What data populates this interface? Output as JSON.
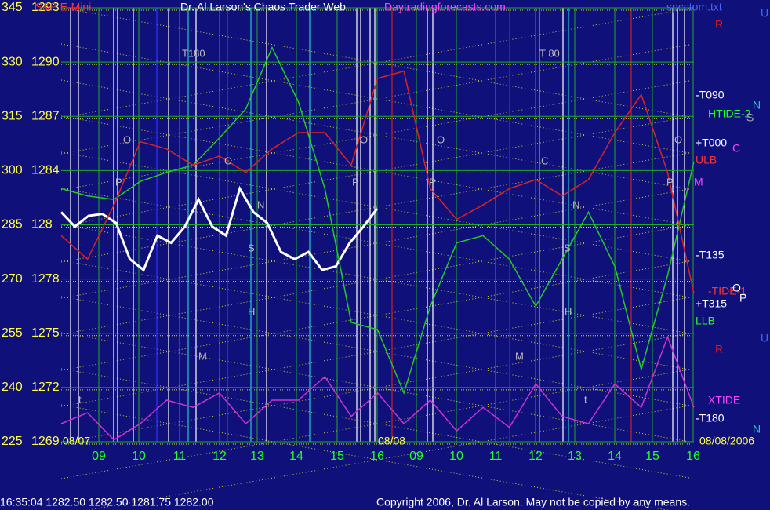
{
  "chart_data": {
    "type": "line",
    "title": "Dr. Al Larson's Chaos Trader Web",
    "symbol": "S&P E-Mini",
    "site": "Daytradingforecasts.com",
    "file": "spcctom.txt",
    "ylim": [
      1269,
      1293
    ],
    "yticks": [
      1293,
      1290,
      1287,
      1284,
      {
        "value": 1281,
        "label": "128"
      },
      1278,
      1275,
      1272,
      {
        "value": 1269,
        "label": "1269"
      }
    ],
    "y2lim": [
      225,
      345
    ],
    "y2ticks": [
      345,
      330,
      315,
      300,
      285,
      270,
      255,
      240,
      225
    ],
    "hour_labels": [
      "09",
      "10",
      "11",
      "12",
      "13",
      "14",
      "15",
      "16",
      "09",
      "10",
      "11",
      "12",
      "13",
      "14",
      "15",
      "16"
    ],
    "date_labels": [
      "08/07",
      "08/08",
      "08/08/2006"
    ],
    "grid": true,
    "series": [
      {
        "color": "#ffffff",
        "values": [
          1281.7,
          1280.9,
          1281.5,
          1281.6,
          1281.1,
          1279.1,
          1278.5,
          1280.4,
          1280.0,
          1280.9,
          1282.4,
          1280.9,
          1280.4,
          1283.0,
          1281.7,
          1281.1,
          1279.5,
          1279.1,
          1279.5,
          1278.5,
          1278.7,
          1280.0,
          1280.9,
          1281.9
        ]
      },
      {
        "color": "#22cc22",
        "values": [
          1283.0,
          1282.6,
          1282.4,
          1283.4,
          1283.9,
          1284.3,
          1285.8,
          1287.4,
          1290.8,
          1287.8,
          1283.0,
          1275.6,
          1275.2,
          1271.7,
          1276.5,
          1280.0,
          1280.4,
          1279.1,
          1276.5,
          1279.1,
          1281.7,
          1278.7,
          1273.0,
          1278.2,
          1284.5
        ]
      },
      {
        "color": "#dd2222",
        "values": [
          1280.4,
          1279.1,
          1282.1,
          1285.6,
          1285.2,
          1284.3,
          1284.8,
          1283.9,
          1285.2,
          1286.1,
          1286.1,
          1284.3,
          1289.1,
          1289.5,
          1283.0,
          1281.3,
          1282.1,
          1283.0,
          1283.5,
          1282.6,
          1283.5,
          1286.1,
          1288.2,
          1283.9,
          1277.2
        ]
      },
      {
        "color": "#cc33cc",
        "values": [
          1270.0,
          1270.6,
          1269.1,
          1270.0,
          1271.3,
          1270.9,
          1271.7,
          1270.0,
          1271.3,
          1271.3,
          1272.6,
          1270.4,
          1271.7,
          1270.0,
          1271.3,
          1269.6,
          1270.9,
          1269.8,
          1272.2,
          1270.4,
          1270.0,
          1272.2,
          1270.9,
          1274.8,
          1270.9
        ]
      }
    ],
    "right_labels": [
      "R",
      "-T090",
      "HTIDE-2",
      "+T000",
      "ULB",
      "M",
      "-T135",
      "-TIDE-1",
      "+T315",
      "LLB",
      "R",
      "XTIDE",
      "-T180"
    ],
    "side_letters": [
      "U",
      "N",
      "S",
      "C",
      "O",
      "P",
      "U",
      "N"
    ],
    "plot_labels": [
      "T180",
      "T 80",
      "O",
      "O",
      "O",
      "O",
      "P",
      "P",
      "P",
      "P",
      "C",
      "C",
      "S",
      "S",
      "N",
      "N",
      "H",
      "H",
      "M",
      "M",
      "t",
      "t"
    ],
    "footer": "16:35:04  1282.50 1282.50 1281.75 1282.00",
    "copyright": "Copyright 2006, Dr. Al Larson. May not be copied by any means."
  }
}
